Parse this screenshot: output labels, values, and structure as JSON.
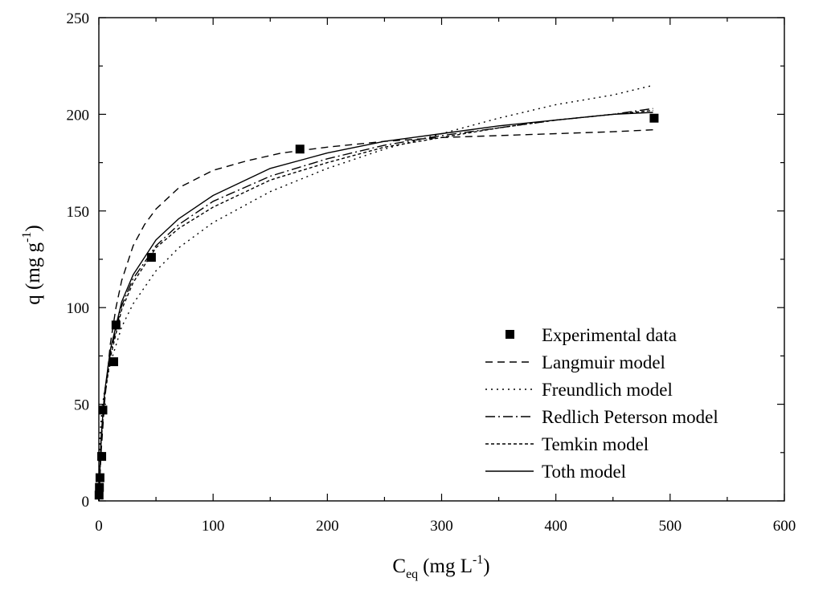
{
  "chart_data": {
    "type": "scatter",
    "xlabel": {
      "main": "C",
      "sub": "eq",
      "unit": "(mg L",
      "sup": "-1",
      "close": ")"
    },
    "ylabel": {
      "main": "q (mg g",
      "sup": "-1",
      "close": ")"
    },
    "xlim": [
      0,
      600
    ],
    "ylim": [
      0,
      250
    ],
    "xticks": [
      0,
      100,
      200,
      300,
      400,
      500,
      600
    ],
    "yticks": [
      0,
      50,
      100,
      150,
      200,
      250
    ],
    "grid": false,
    "legend_position": "bottom-right",
    "series": [
      {
        "name": "Experimental data",
        "kind": "points",
        "marker": "square",
        "x": [
          0.2,
          0.5,
          1.0,
          2.5,
          3.5,
          13.0,
          15.0,
          46.0,
          176.0,
          486.0
        ],
        "y": [
          3,
          7,
          12,
          23,
          47,
          72,
          91,
          126,
          182,
          198
        ]
      },
      {
        "name": "Langmuir model",
        "kind": "line",
        "dash": "9,6",
        "x": [
          0,
          2,
          5,
          10,
          15,
          20,
          30,
          40,
          50,
          70,
          100,
          130,
          160,
          200,
          250,
          300,
          350,
          400,
          450,
          485
        ],
        "y": [
          0,
          25,
          51,
          81,
          100,
          114,
          132,
          143,
          151,
          162,
          171,
          176,
          180,
          183,
          186,
          188,
          189,
          190,
          191,
          192
        ]
      },
      {
        "name": "Freundlich model",
        "kind": "line",
        "dash": "2,5",
        "x": [
          0,
          1,
          3,
          5,
          10,
          20,
          30,
          50,
          70,
          100,
          150,
          200,
          250,
          300,
          350,
          400,
          450,
          485
        ],
        "y": [
          0,
          34,
          49,
          57,
          71,
          90,
          102,
          119,
          131,
          144,
          160,
          172,
          182,
          190,
          198,
          205,
          210,
          215
        ]
      },
      {
        "name": "Redlich Peterson model",
        "kind": "line",
        "dash": "12,4,2,4",
        "x": [
          0,
          2,
          5,
          10,
          20,
          30,
          50,
          70,
          100,
          150,
          200,
          250,
          300,
          350,
          400,
          450,
          485
        ],
        "y": [
          0,
          32,
          55,
          76,
          101,
          115,
          132,
          143,
          155,
          168,
          177,
          184,
          189,
          193,
          197,
          200,
          203
        ]
      },
      {
        "name": "Temkin model",
        "kind": "line",
        "dash": "4,3",
        "x": [
          0,
          2,
          5,
          10,
          20,
          30,
          50,
          70,
          100,
          150,
          200,
          250,
          300,
          350,
          400,
          450,
          485
        ],
        "y": [
          0,
          30,
          53,
          74,
          99,
          113,
          131,
          141,
          152,
          166,
          175,
          183,
          188,
          193,
          197,
          200,
          202
        ]
      },
      {
        "name": "Toth model",
        "kind": "line",
        "dash": "",
        "x": [
          0,
          2,
          5,
          10,
          20,
          30,
          50,
          70,
          100,
          150,
          200,
          250,
          300,
          350,
          400,
          450,
          485
        ],
        "y": [
          0,
          33,
          56,
          78,
          103,
          117,
          135,
          146,
          158,
          172,
          180,
          186,
          190,
          194,
          197,
          200,
          201
        ]
      }
    ]
  }
}
